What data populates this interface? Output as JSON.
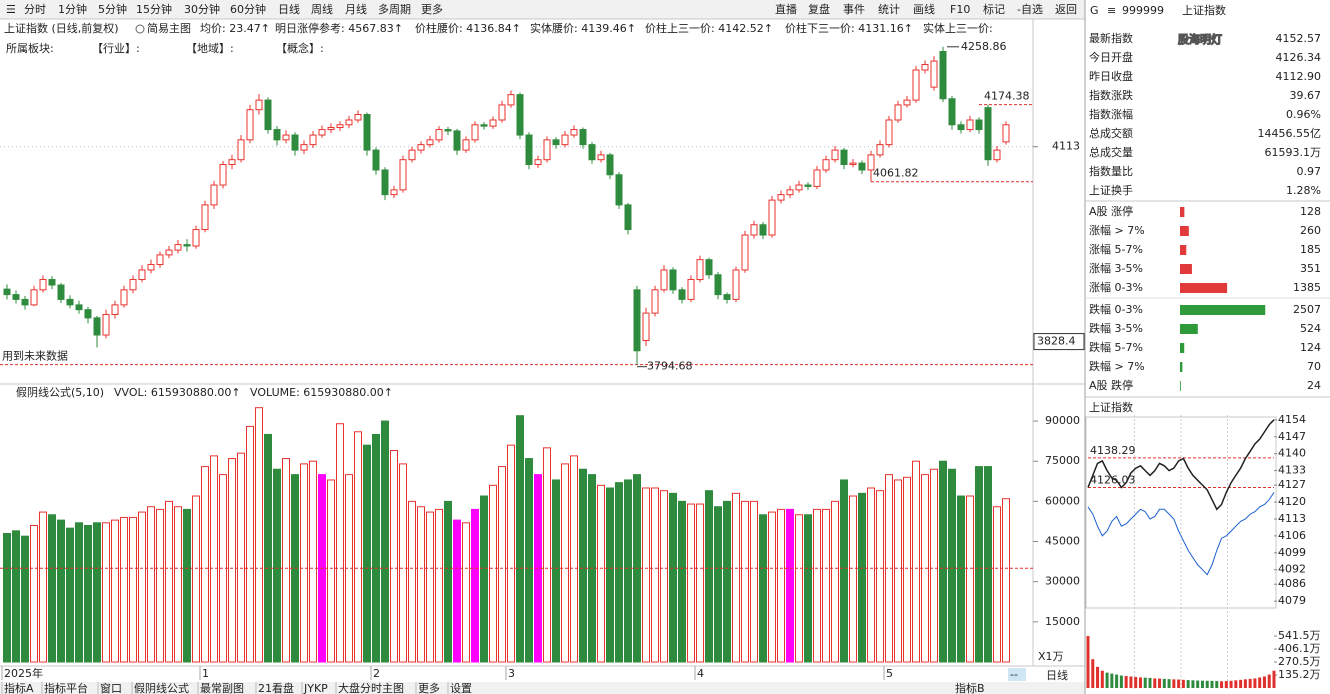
{
  "toolbar": {
    "periods": [
      "分时",
      "1分钟",
      "5分钟",
      "15分钟",
      "30分钟",
      "60分钟",
      "日线",
      "周线",
      "月线",
      "多周期",
      "更多"
    ],
    "active": 6,
    "buttons": [
      "直播",
      "复盘",
      "事件",
      "统计",
      "画线",
      "F10",
      "标记",
      "-自选",
      "返回"
    ]
  },
  "main_chart": {
    "title": "上证指数 (日线,前复权)",
    "mode": "简易主图",
    "indicators": [
      "均价: 23.47↑",
      "明日涨停参考: 4567.83↑",
      "价柱腰价: 4136.84↑",
      "实体腰价: 4139.46↑",
      "价柱上三一价: 4142.52↑",
      "价柱下三一价: 4131.16↑",
      "实体上三一价:"
    ],
    "boards": [
      "所属板块:",
      "【行业】:",
      "【地域】:",
      "【概念】:"
    ],
    "up_color": "#e8332e",
    "down_color": "#2e8b3d",
    "ylim": [
      3765,
      4298
    ],
    "yticks": [
      4113
    ],
    "cursor_value": 3828.4,
    "high_mark": 4258.86,
    "low_mark": 3794.68,
    "upper_line": 4174.38,
    "lower_line": 4061.82,
    "note": "用到未来数据",
    "candles": [
      [
        3905,
        3912,
        3890,
        3897
      ],
      [
        3897,
        3903,
        3884,
        3890
      ],
      [
        3890,
        3895,
        3875,
        3882
      ],
      [
        3882,
        3910,
        3880,
        3904
      ],
      [
        3904,
        3925,
        3900,
        3919
      ],
      [
        3919,
        3924,
        3905,
        3911
      ],
      [
        3911,
        3914,
        3885,
        3890
      ],
      [
        3890,
        3896,
        3877,
        3882
      ],
      [
        3882,
        3888,
        3869,
        3875
      ],
      [
        3875,
        3879,
        3855,
        3863
      ],
      [
        3863,
        3866,
        3820,
        3838
      ],
      [
        3838,
        3875,
        3833,
        3868
      ],
      [
        3868,
        3888,
        3862,
        3882
      ],
      [
        3882,
        3910,
        3878,
        3904
      ],
      [
        3904,
        3925,
        3899,
        3919
      ],
      [
        3919,
        3940,
        3915,
        3933
      ],
      [
        3933,
        3948,
        3928,
        3941
      ],
      [
        3941,
        3960,
        3936,
        3955
      ],
      [
        3955,
        3968,
        3950,
        3962
      ],
      [
        3962,
        3977,
        3957,
        3970
      ],
      [
        3970,
        3978,
        3960,
        3968
      ],
      [
        3968,
        3998,
        3964,
        3992
      ],
      [
        3992,
        4034,
        3988,
        4028
      ],
      [
        4028,
        4063,
        4022,
        4057
      ],
      [
        4057,
        4092,
        4052,
        4087
      ],
      [
        4087,
        4101,
        4080,
        4094
      ],
      [
        4094,
        4130,
        4090,
        4123
      ],
      [
        4123,
        4174,
        4118,
        4167
      ],
      [
        4167,
        4190,
        4160,
        4181
      ],
      [
        4181,
        4185,
        4132,
        4138
      ],
      [
        4138,
        4143,
        4115,
        4123
      ],
      [
        4123,
        4137,
        4118,
        4130
      ],
      [
        4130,
        4134,
        4100,
        4108
      ],
      [
        4108,
        4122,
        4102,
        4116
      ],
      [
        4116,
        4136,
        4111,
        4130
      ],
      [
        4130,
        4144,
        4126,
        4138
      ],
      [
        4138,
        4147,
        4133,
        4141
      ],
      [
        4141,
        4150,
        4136,
        4145
      ],
      [
        4145,
        4158,
        4140,
        4152
      ],
      [
        4152,
        4166,
        4148,
        4160
      ],
      [
        4160,
        4163,
        4100,
        4108
      ],
      [
        4108,
        4112,
        4072,
        4079
      ],
      [
        4079,
        4083,
        4035,
        4043
      ],
      [
        4043,
        4056,
        4038,
        4050
      ],
      [
        4050,
        4100,
        4046,
        4094
      ],
      [
        4094,
        4113,
        4090,
        4108
      ],
      [
        4108,
        4121,
        4103,
        4116
      ],
      [
        4116,
        4129,
        4112,
        4123
      ],
      [
        4123,
        4143,
        4119,
        4138
      ],
      [
        4138,
        4142,
        4130,
        4136
      ],
      [
        4136,
        4139,
        4101,
        4108
      ],
      [
        4108,
        4128,
        4104,
        4123
      ],
      [
        4123,
        4150,
        4119,
        4145
      ],
      [
        4145,
        4149,
        4138,
        4143
      ],
      [
        4143,
        4157,
        4139,
        4152
      ],
      [
        4152,
        4180,
        4148,
        4174
      ],
      [
        4174,
        4195,
        4170,
        4189
      ],
      [
        4189,
        4192,
        4124,
        4130
      ],
      [
        4130,
        4134,
        4080,
        4087
      ],
      [
        4087,
        4100,
        4082,
        4094
      ],
      [
        4094,
        4128,
        4090,
        4123
      ],
      [
        4123,
        4127,
        4110,
        4116
      ],
      [
        4116,
        4136,
        4112,
        4130
      ],
      [
        4130,
        4144,
        4126,
        4138
      ],
      [
        4138,
        4141,
        4110,
        4116
      ],
      [
        4116,
        4120,
        4088,
        4094
      ],
      [
        4094,
        4107,
        4090,
        4101
      ],
      [
        4101,
        4104,
        4066,
        4072
      ],
      [
        4072,
        4076,
        4022,
        4028
      ],
      [
        4028,
        4031,
        3985,
        3992
      ],
      [
        3904,
        3910,
        3794.68,
        3815
      ],
      [
        3830,
        3878,
        3822,
        3870
      ],
      [
        3870,
        3910,
        3865,
        3904
      ],
      [
        3904,
        3940,
        3900,
        3933
      ],
      [
        3933,
        3937,
        3898,
        3904
      ],
      [
        3904,
        3908,
        3884,
        3890
      ],
      [
        3890,
        3925,
        3886,
        3919
      ],
      [
        3919,
        3954,
        3915,
        3948
      ],
      [
        3948,
        3951,
        3920,
        3926
      ],
      [
        3926,
        3930,
        3890,
        3897
      ],
      [
        3897,
        3900,
        3884,
        3890
      ],
      [
        3890,
        3938,
        3886,
        3933
      ],
      [
        3933,
        3990,
        3929,
        3984
      ],
      [
        3984,
        4005,
        3979,
        3999
      ],
      [
        3999,
        4003,
        3978,
        3984
      ],
      [
        3984,
        4041,
        3980,
        4035
      ],
      [
        4035,
        4049,
        4030,
        4043
      ],
      [
        4043,
        4056,
        4038,
        4050
      ],
      [
        4050,
        4063,
        4046,
        4057
      ],
      [
        4057,
        4061,
        4050,
        4055
      ],
      [
        4055,
        4085,
        4051,
        4079
      ],
      [
        4079,
        4100,
        4075,
        4094
      ],
      [
        4094,
        4114,
        4090,
        4108
      ],
      [
        4108,
        4111,
        4080,
        4087
      ],
      [
        4087,
        4095,
        4083,
        4089
      ],
      [
        4089,
        4093,
        4073,
        4079
      ],
      [
        4079,
        4107,
        4061.82,
        4101
      ],
      [
        4101,
        4122,
        4097,
        4116
      ],
      [
        4116,
        4158,
        4112,
        4152
      ],
      [
        4152,
        4180,
        4148,
        4174
      ],
      [
        4174,
        4187,
        4170,
        4181
      ],
      [
        4181,
        4231,
        4177,
        4225
      ],
      [
        4225,
        4239,
        4220,
        4233
      ],
      [
        4200,
        4245,
        4195,
        4238
      ],
      [
        4252,
        4258.86,
        4178,
        4183
      ],
      [
        4183,
        4187,
        4138,
        4145
      ],
      [
        4145,
        4150,
        4132,
        4138
      ],
      [
        4138,
        4158,
        4134,
        4152
      ],
      [
        4152,
        4156,
        4132,
        4138
      ],
      [
        4170,
        4174.38,
        4085,
        4094
      ],
      [
        4094,
        4114,
        4090,
        4108
      ],
      [
        4120,
        4150,
        4116,
        4145
      ]
    ],
    "x_labels": [
      "2025年",
      null,
      null,
      null,
      null,
      null,
      null,
      null,
      null,
      null,
      null,
      null,
      null,
      null,
      null,
      null,
      null,
      null,
      null,
      null,
      null,
      null,
      "1",
      null,
      null,
      null,
      null,
      null,
      null,
      null,
      null,
      null,
      null,
      null,
      null,
      null,
      null,
      null,
      null,
      null,
      null,
      "2",
      null,
      null,
      null,
      null,
      null,
      null,
      null,
      null,
      null,
      null,
      null,
      null,
      null,
      null,
      "3",
      null,
      null,
      null,
      null,
      null,
      null,
      null,
      null,
      null,
      null,
      null,
      null,
      null,
      null,
      null,
      null,
      null,
      null,
      null,
      null,
      "4",
      null,
      null,
      null,
      null,
      null,
      null,
      null,
      null,
      null,
      null,
      null,
      null,
      null,
      null,
      null,
      null,
      null,
      null,
      null,
      null,
      "5",
      null,
      null,
      null,
      null,
      null,
      null,
      null,
      null,
      null,
      null,
      null,
      null,
      null
    ]
  },
  "volume_chart": {
    "formula": "假阴线公式(5,10)",
    "vvol": "VVOL: 615930880.00↑",
    "volume": "VOLUME: 615930880.00↑",
    "ylim": [
      0,
      96000
    ],
    "yticks": [
      15000,
      30000,
      45000,
      60000,
      75000,
      90000
    ],
    "unit": "X1万",
    "level": 35000,
    "highlighted": [
      35,
      50,
      52,
      59,
      87
    ],
    "highlight_color": "#ff00ff",
    "values": [
      48000,
      49000,
      47000,
      51000,
      56000,
      55000,
      53000,
      50000,
      52000,
      51000,
      52000,
      52000,
      53000,
      54000,
      54000,
      56000,
      58000,
      57000,
      60000,
      58000,
      57000,
      62000,
      73000,
      77000,
      70000,
      76000,
      78000,
      88000,
      95000,
      85000,
      72000,
      76000,
      70000,
      74000,
      75000,
      70000,
      68000,
      89000,
      70000,
      86000,
      81000,
      85000,
      90000,
      79000,
      74000,
      60000,
      58000,
      56000,
      57000,
      60000,
      53000,
      52000,
      57000,
      62000,
      66000,
      73000,
      81000,
      92000,
      76000,
      70000,
      80000,
      68000,
      74000,
      77000,
      72000,
      70000,
      66000,
      65000,
      67000,
      68000,
      70000,
      65000,
      65000,
      64000,
      63000,
      60000,
      59000,
      59000,
      64000,
      58000,
      60000,
      63000,
      60000,
      60000,
      55000,
      56000,
      57000,
      57000,
      55000,
      55000,
      57000,
      57000,
      60000,
      68000,
      62000,
      63000,
      65000,
      64000,
      70000,
      68000,
      69000,
      75000,
      70000,
      72000,
      75000,
      72000,
      62000,
      62000,
      73000,
      73000,
      58000,
      61000
    ]
  },
  "quote": {
    "market": "G",
    "code": "999999",
    "name": "上证指数",
    "watermark": "股海明灯",
    "stats": [
      {
        "label": "最新指数",
        "value": "4152.57",
        "color": "#e0302c"
      },
      {
        "label": "今日开盘",
        "value": "4126.34",
        "color": "#e0302c"
      },
      {
        "label": "昨日收盘",
        "value": "4112.90",
        "color": "#222222"
      },
      {
        "label": "指数涨跌",
        "value": "39.67",
        "color": "#e0302c"
      },
      {
        "label": "指数涨幅",
        "value": "0.96%",
        "color": "#e0302c"
      },
      {
        "label": "总成交额",
        "value": "14456.55亿",
        "color": "#222222"
      },
      {
        "label": "总成交量",
        "value": "61593.1万",
        "color": "#222222"
      },
      {
        "label": "指数量比",
        "value": "0.97",
        "color": "#2e8b3d"
      },
      {
        "label": "上证换手",
        "value": "1.28%",
        "color": "#222222"
      }
    ],
    "breadth": [
      {
        "label": "A股 涨停",
        "count": 128,
        "color": "#e03a3a"
      },
      {
        "label": "涨幅 > 7%",
        "count": 260,
        "color": "#e03a3a"
      },
      {
        "label": "涨幅 5-7%",
        "count": 185,
        "color": "#e03a3a"
      },
      {
        "label": "涨幅 3-5%",
        "count": 351,
        "color": "#e03a3a"
      },
      {
        "label": "涨幅 0-3%",
        "count": 1385,
        "color": "#e03a3a"
      },
      {
        "label": "跌幅 0-3%",
        "count": 2507,
        "color": "#2e9a3a"
      },
      {
        "label": "跌幅 3-5%",
        "count": 524,
        "color": "#2e9a3a"
      },
      {
        "label": "跌幅 5-7%",
        "count": 124,
        "color": "#2e9a3a"
      },
      {
        "label": "跌幅 > 7%",
        "count": 70,
        "color": "#2e9a3a"
      },
      {
        "label": "A股 跌停",
        "count": 24,
        "color": "#2e9a3a"
      }
    ]
  },
  "intraday": {
    "title": "上证指数",
    "ylim": [
      4077,
      4156
    ],
    "yticks": [
      4079,
      4086,
      4092,
      4099,
      4106,
      4113,
      4120,
      4127,
      4133,
      4140,
      4147,
      4154
    ],
    "high_line": 4138.29,
    "low_line": 4126.03,
    "price": [
      4126,
      4131,
      4136,
      4137,
      4133,
      4130,
      4129,
      4126,
      4128,
      4132,
      4134,
      4135,
      4133,
      4131,
      4133,
      4136,
      4135,
      4133,
      4134,
      4137,
      4138,
      4134,
      4131,
      4129,
      4127,
      4125,
      4121,
      4117,
      4119,
      4124,
      4128,
      4131,
      4134,
      4138,
      4141,
      4144,
      4146,
      4149,
      4152,
      4154
    ],
    "avg": [
      4118,
      4115,
      4110,
      4106,
      4108,
      4112,
      4114,
      4110,
      4111,
      4113,
      4115,
      4117,
      4116,
      4113,
      4114,
      4117,
      4117,
      4115,
      4113,
      4108,
      4104,
      4100,
      4097,
      4094,
      4092,
      4090,
      4094,
      4100,
      4105,
      4106,
      4108,
      4110,
      4112,
      4113,
      4115,
      4116,
      4118,
      4119,
      4121,
      4124
    ],
    "vol_ylim": [
      0,
      698
    ],
    "vol_ticks": [
      {
        "value": 135.2,
        "label": "135.2万"
      },
      {
        "value": 270.5,
        "label": "270.5万"
      },
      {
        "value": 406.1,
        "label": "406.1万"
      },
      {
        "value": 541.5,
        "label": "541.5万"
      }
    ],
    "volume": [
      541,
      300,
      220,
      180,
      160,
      150,
      140,
      130,
      125,
      120,
      115,
      110,
      108,
      105,
      100,
      98,
      95,
      92,
      90,
      88,
      85,
      82,
      80,
      78,
      76,
      75,
      74,
      72,
      70,
      72,
      75,
      80,
      85,
      90,
      95,
      100,
      110,
      120,
      140,
      180
    ]
  },
  "bottom": {
    "tabs": [
      "指标A",
      "指标平台",
      "窗口",
      "假阴线公式",
      "最常副图",
      "21看盘",
      "JYKP",
      "大盘分时主图",
      "更多",
      "设置"
    ],
    "right_tabs": [
      "指标B"
    ],
    "period": "日线",
    "dash": "--"
  }
}
